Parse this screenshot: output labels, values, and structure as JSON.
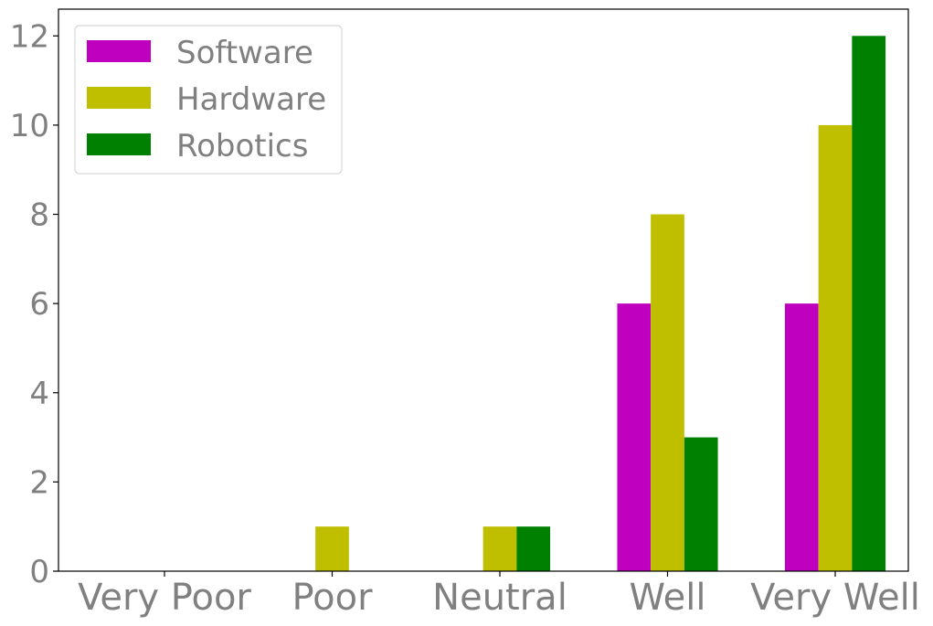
{
  "chart_data": {
    "type": "bar",
    "categories": [
      "Very Poor",
      "Poor",
      "Neutral",
      "Well",
      "Very Well"
    ],
    "series": [
      {
        "name": "Software",
        "color": "#bf00bf",
        "values": [
          0,
          0,
          0,
          6,
          6
        ]
      },
      {
        "name": "Hardware",
        "color": "#bfbf00",
        "values": [
          0,
          1,
          1,
          8,
          10
        ]
      },
      {
        "name": "Robotics",
        "color": "#008000",
        "values": [
          0,
          0,
          1,
          3,
          12
        ]
      }
    ],
    "title": "",
    "xlabel": "",
    "ylabel": "",
    "ylim": [
      0,
      12.6
    ],
    "yticks": [
      0,
      2,
      4,
      6,
      8,
      10,
      12
    ],
    "grid": false,
    "legend_position": "top-left"
  }
}
